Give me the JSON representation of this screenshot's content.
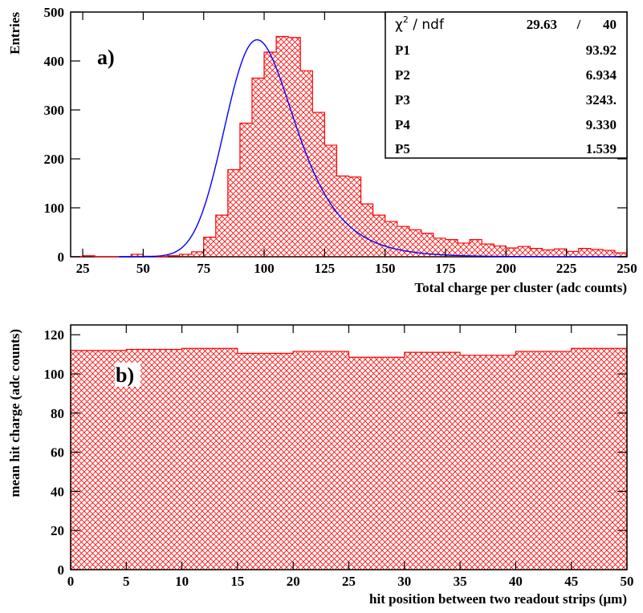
{
  "chart_data": [
    {
      "type": "histogram",
      "panel_label": "a)",
      "xlabel": "Total charge per cluster (adc counts)",
      "ylabel": "Entries",
      "xlim": [
        20,
        250
      ],
      "ylim": [
        0,
        500
      ],
      "x_ticks": [
        25,
        50,
        75,
        100,
        125,
        150,
        175,
        200,
        225,
        250
      ],
      "y_ticks": [
        0,
        100,
        200,
        300,
        400,
        500
      ],
      "bin_width": 5,
      "bin_edges_start": 20,
      "bin_edges_end": 250,
      "values": [
        0,
        2,
        0,
        0,
        0,
        5,
        1,
        0,
        2,
        5,
        10,
        40,
        85,
        178,
        273,
        365,
        418,
        450,
        448,
        380,
        295,
        228,
        165,
        163,
        108,
        85,
        72,
        62,
        55,
        48,
        38,
        35,
        28,
        35,
        26,
        22,
        18,
        21,
        17,
        14,
        16,
        11,
        17,
        15,
        13,
        8
      ],
      "fit": {
        "color": "#0000ff",
        "params": {
          "p1": 93.92,
          "p2": 6.934,
          "p3": 3243,
          "p4": 9.33,
          "p5": 1.539
        }
      },
      "fill_color": "#ff0000",
      "stats_box": {
        "rows": [
          {
            "name": "ndf",
            "value": "29.63",
            "sep": "/",
            "value2": "40"
          },
          {
            "name": "P1",
            "value": "93.92"
          },
          {
            "name": "P2",
            "value": "6.934"
          },
          {
            "name": "P3",
            "value": "3243."
          },
          {
            "name": "P4",
            "value": "9.330"
          },
          {
            "name": "P5",
            "value": "1.539"
          }
        ]
      }
    },
    {
      "type": "histogram",
      "panel_label": "b)",
      "xlabel": "hit position between two readout strips (μm)",
      "ylabel": "mean hit charge (adc counts)",
      "xlim": [
        0,
        50
      ],
      "ylim": [
        0,
        125
      ],
      "x_ticks": [
        0,
        5,
        10,
        15,
        20,
        25,
        30,
        35,
        40,
        45,
        50
      ],
      "y_ticks": [
        0,
        20,
        40,
        60,
        80,
        100,
        120
      ],
      "bin_width": 5,
      "values": [
        112.0,
        112.5,
        113.0,
        110.5,
        111.5,
        108.5,
        111.0,
        109.5,
        111.5,
        113.0
      ],
      "fill_color": "#ff0000"
    }
  ]
}
